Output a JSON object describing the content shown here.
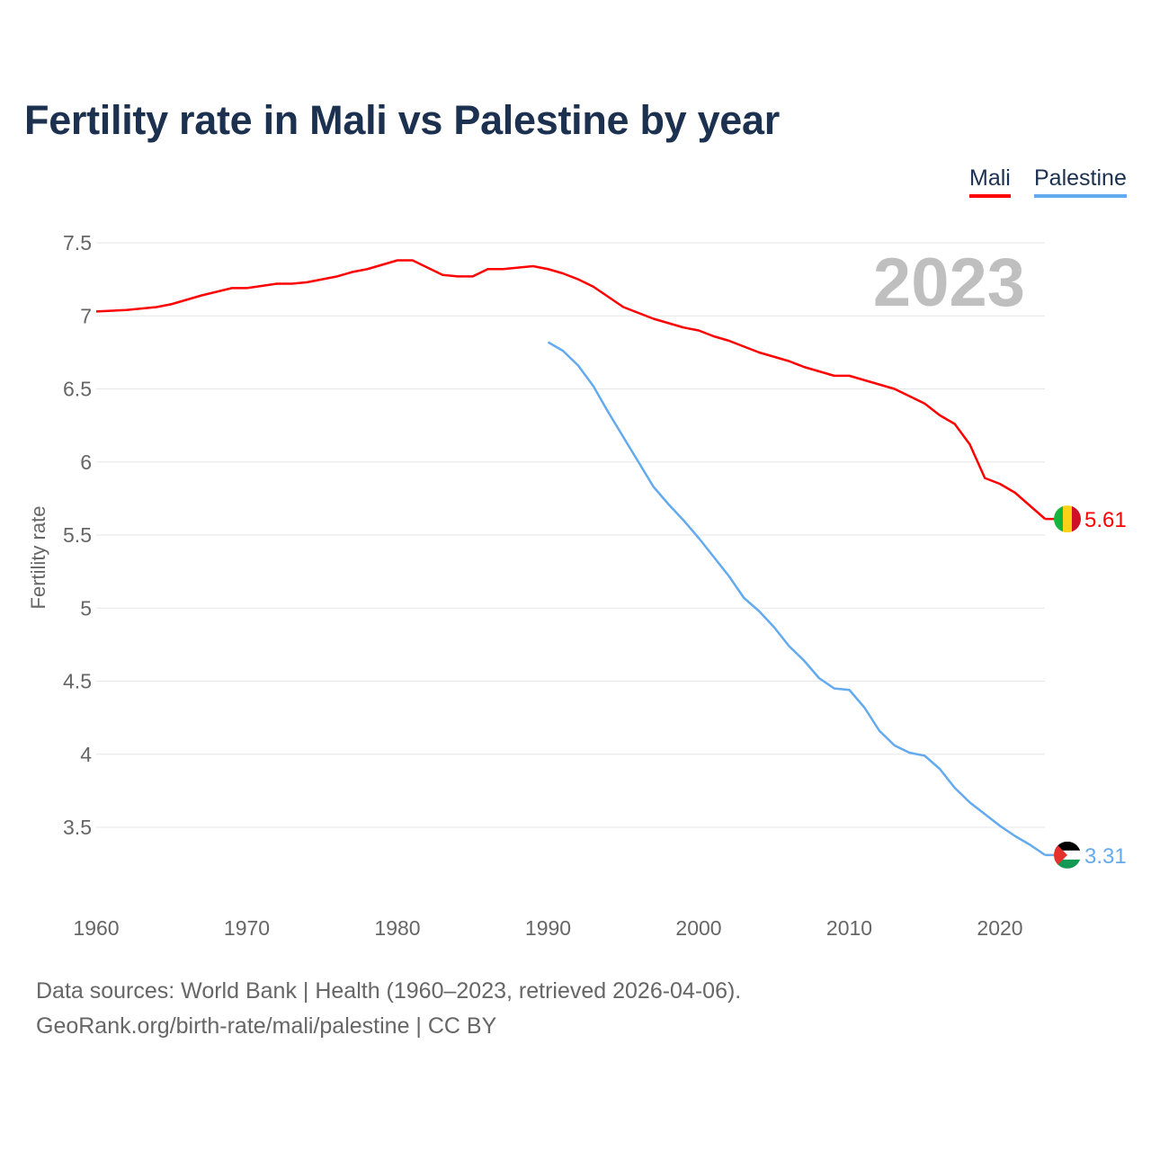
{
  "title": "Fertility rate in Mali vs Palestine by year",
  "footer": {
    "line1": "Data sources: World Bank | Health (1960–2023, retrieved 2026-04-06).",
    "line2": "GeoRank.org/birth-rate/mali/palestine | CC BY"
  },
  "chart_data": {
    "type": "line",
    "title": "Fertility rate in Mali vs Palestine by year",
    "xlabel": "",
    "ylabel": "Fertility rate",
    "xlim": [
      1960,
      2023
    ],
    "ylim": [
      3.2,
      7.55
    ],
    "x_ticks": [
      1960,
      1970,
      1980,
      1990,
      2000,
      2010,
      2020
    ],
    "y_ticks": [
      3.5,
      4,
      4.5,
      5,
      5.5,
      6,
      6.5,
      7,
      7.5
    ],
    "y_tick_labels": [
      "3.5",
      "4",
      "4.5",
      "5",
      "5.5",
      "6",
      "6.5",
      "7",
      "7.5"
    ],
    "year_label": "2023",
    "grid": true,
    "legend_position": "top-right",
    "series": [
      {
        "name": "Mali",
        "color": "#ff0000",
        "end_label": "5.61",
        "x": [
          1960,
          1962,
          1964,
          1965,
          1967,
          1969,
          1970,
          1972,
          1973,
          1974,
          1976,
          1977,
          1978,
          1979,
          1980,
          1981,
          1982,
          1983,
          1984,
          1985,
          1986,
          1987,
          1988,
          1989,
          1990,
          1991,
          1992,
          1993,
          1994,
          1995,
          1996,
          1997,
          1998,
          1999,
          2000,
          2001,
          2002,
          2003,
          2004,
          2005,
          2006,
          2007,
          2008,
          2009,
          2010,
          2011,
          2012,
          2013,
          2014,
          2015,
          2016,
          2017,
          2018,
          2019,
          2020,
          2021,
          2022,
          2023
        ],
        "values": [
          7.03,
          7.04,
          7.06,
          7.08,
          7.14,
          7.19,
          7.19,
          7.22,
          7.22,
          7.23,
          7.27,
          7.3,
          7.32,
          7.35,
          7.38,
          7.38,
          7.33,
          7.28,
          7.27,
          7.27,
          7.32,
          7.32,
          7.33,
          7.34,
          7.32,
          7.29,
          7.25,
          7.2,
          7.13,
          7.06,
          7.02,
          6.98,
          6.95,
          6.92,
          6.9,
          6.86,
          6.83,
          6.79,
          6.75,
          6.72,
          6.69,
          6.65,
          6.62,
          6.59,
          6.59,
          6.56,
          6.53,
          6.5,
          6.45,
          6.4,
          6.32,
          6.26,
          6.12,
          5.89,
          5.85,
          5.79,
          5.7,
          5.61
        ]
      },
      {
        "name": "Palestine",
        "color": "#63aaee",
        "end_label": "3.31",
        "x": [
          1990,
          1991,
          1992,
          1993,
          1994,
          1995,
          1996,
          1997,
          1998,
          1999,
          2000,
          2001,
          2002,
          2003,
          2004,
          2005,
          2006,
          2007,
          2008,
          2009,
          2010,
          2011,
          2012,
          2013,
          2014,
          2015,
          2016,
          2017,
          2018,
          2019,
          2020,
          2021,
          2022,
          2023
        ],
        "values": [
          6.82,
          6.76,
          6.66,
          6.52,
          6.34,
          6.17,
          6.0,
          5.83,
          5.71,
          5.6,
          5.48,
          5.35,
          5.22,
          5.07,
          4.98,
          4.87,
          4.74,
          4.64,
          4.52,
          4.45,
          4.44,
          4.32,
          4.16,
          4.06,
          4.01,
          3.99,
          3.9,
          3.77,
          3.67,
          3.59,
          3.51,
          3.44,
          3.38,
          3.31
        ]
      }
    ]
  }
}
